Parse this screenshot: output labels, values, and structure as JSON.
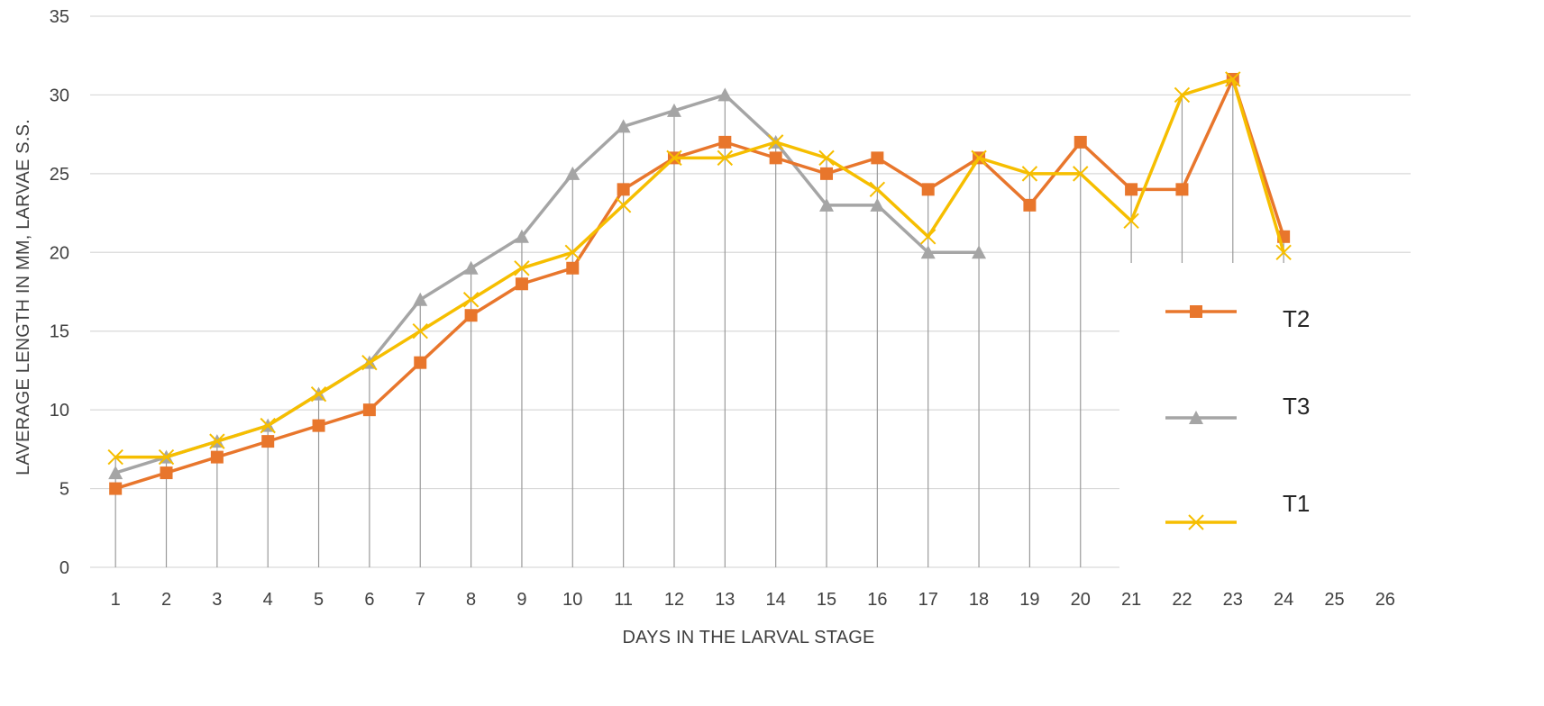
{
  "chart_data": {
    "type": "line",
    "xlabel": "DAYS IN THE LARVAL STAGE",
    "ylabel": "LAVERAGE LENGTH IN MM, LARVAE S.S.",
    "categories": [
      "1",
      "2",
      "3",
      "4",
      "5",
      "6",
      "7",
      "8",
      "9",
      "10",
      "11",
      "12",
      "13",
      "14",
      "15",
      "16",
      "17",
      "18",
      "19",
      "20",
      "21",
      "22",
      "23",
      "24",
      "25",
      "26"
    ],
    "ylim": [
      0,
      35
    ],
    "yticks": [
      0,
      5,
      10,
      15,
      20,
      25,
      30,
      35
    ],
    "grid": "horizontal",
    "legend_position": "right",
    "series": [
      {
        "name": "T2",
        "color": "#E8762C",
        "marker": "square",
        "values": [
          5,
          6,
          7,
          8,
          9,
          10,
          13,
          16,
          18,
          19,
          24,
          26,
          27,
          26,
          25,
          26,
          24,
          26,
          23,
          27,
          24,
          24,
          31,
          21,
          null,
          null
        ]
      },
      {
        "name": "T3",
        "color": "#A5A5A5",
        "marker": "triangle",
        "values": [
          6,
          7,
          8,
          9,
          11,
          13,
          17,
          19,
          21,
          25,
          28,
          29,
          30,
          27,
          23,
          23,
          20,
          20,
          null,
          null,
          null,
          null,
          null,
          null,
          null,
          null
        ]
      },
      {
        "name": "T1",
        "color": "#F6BE00",
        "marker": "x",
        "values": [
          7,
          7,
          8,
          9,
          11,
          13,
          15,
          17,
          19,
          20,
          23,
          26,
          26,
          27,
          26,
          24,
          21,
          26,
          25,
          25,
          22,
          30,
          31,
          20,
          null,
          null
        ]
      }
    ]
  }
}
